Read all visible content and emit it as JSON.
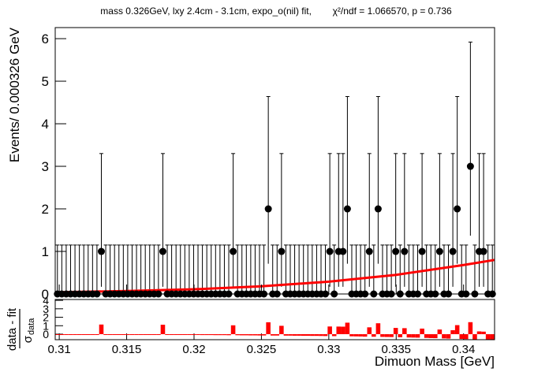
{
  "chart_data": [
    {
      "type": "errorbar",
      "title": "mass 0.326GeV, lxy 2.4cm - 3.1cm, expo_o(nil) fit,        χ²/ndf = 1.066570, p = 0.736",
      "ylabel": "Events/ 0.000326 GeV",
      "xlim": [
        0.3097,
        0.3423
      ],
      "ylim": [
        0,
        6.26
      ],
      "yticks": [
        0,
        1,
        2,
        3,
        4,
        5,
        6
      ],
      "marker_color": "#000000",
      "x": [
        0.309863,
        0.310189,
        0.310515,
        0.310841,
        0.311167,
        0.311493,
        0.311819,
        0.312145,
        0.312471,
        0.312797,
        0.313123,
        0.313449,
        0.313775,
        0.314101,
        0.314427,
        0.314753,
        0.315079,
        0.315405,
        0.315731,
        0.316057,
        0.316383,
        0.316709,
        0.317035,
        0.317361,
        0.317687,
        0.318013,
        0.318339,
        0.318665,
        0.318991,
        0.319317,
        0.319643,
        0.319969,
        0.320295,
        0.320621,
        0.320947,
        0.321273,
        0.321599,
        0.321925,
        0.322251,
        0.322577,
        0.322903,
        0.323229,
        0.323555,
        0.323881,
        0.324207,
        0.324533,
        0.324859,
        0.325185,
        0.325511,
        0.325837,
        0.326163,
        0.326489,
        0.326815,
        0.327141,
        0.327467,
        0.327793,
        0.328119,
        0.328445,
        0.328771,
        0.329097,
        0.329423,
        0.329749,
        0.330075,
        0.330401,
        0.330727,
        0.331053,
        0.331379,
        0.331705,
        0.332031,
        0.332357,
        0.332683,
        0.333009,
        0.333335,
        0.333661,
        0.333987,
        0.334313,
        0.334639,
        0.334965,
        0.335291,
        0.335617,
        0.335943,
        0.336269,
        0.336595,
        0.336921,
        0.337247,
        0.337573,
        0.337899,
        0.338225,
        0.338551,
        0.338877,
        0.339203,
        0.339529,
        0.339855,
        0.340181,
        0.340507,
        0.340833,
        0.341159,
        0.341485,
        0.341811,
        0.342137
      ],
      "values": [
        0,
        0,
        0,
        0,
        0,
        0,
        0,
        0,
        0,
        0,
        1,
        0,
        0,
        0,
        0,
        0,
        0,
        0,
        0,
        0,
        0,
        0,
        0,
        0,
        1,
        0,
        0,
        0,
        0,
        0,
        0,
        0,
        0,
        0,
        0,
        0,
        0,
        0,
        0,
        0,
        1,
        0,
        0,
        0,
        0,
        0,
        0,
        0,
        2,
        0,
        0,
        1,
        0,
        0,
        0,
        0,
        0,
        0,
        0,
        0,
        0,
        0,
        1,
        0,
        1,
        1,
        2,
        0,
        0,
        0,
        0,
        1,
        0,
        2,
        0,
        0,
        0,
        1,
        0,
        1,
        0,
        0,
        0,
        1,
        0,
        0,
        0,
        1,
        0,
        0,
        1,
        2,
        0,
        0,
        3,
        0,
        1,
        1,
        0,
        0
      ],
      "error_low": [
        0,
        0,
        0,
        0,
        0,
        0,
        0,
        0,
        0,
        0,
        0.83,
        0,
        0,
        0,
        0,
        0,
        0,
        0,
        0,
        0,
        0,
        0,
        0,
        0,
        0.83,
        0,
        0,
        0,
        0,
        0,
        0,
        0,
        0,
        0,
        0,
        0,
        0,
        0,
        0,
        0,
        0.83,
        0,
        0,
        0,
        0,
        0,
        0,
        0,
        1.29,
        0,
        0,
        0.83,
        0,
        0,
        0,
        0,
        0,
        0,
        0,
        0,
        0,
        0,
        0.83,
        0,
        0.83,
        0.83,
        1.29,
        0,
        0,
        0,
        0,
        0.83,
        0,
        1.29,
        0,
        0,
        0,
        0.83,
        0,
        0.83,
        0,
        0,
        0,
        0.83,
        0,
        0,
        0,
        0.83,
        0,
        0,
        0.83,
        1.29,
        0,
        0,
        1.63,
        0,
        0.83,
        0.83,
        0,
        0
      ],
      "error_high": [
        1.15,
        1.15,
        1.15,
        1.15,
        1.15,
        1.15,
        1.15,
        1.15,
        1.15,
        1.15,
        2.3,
        1.15,
        1.15,
        1.15,
        1.15,
        1.15,
        1.15,
        1.15,
        1.15,
        1.15,
        1.15,
        1.15,
        1.15,
        1.15,
        2.3,
        1.15,
        1.15,
        1.15,
        1.15,
        1.15,
        1.15,
        1.15,
        1.15,
        1.15,
        1.15,
        1.15,
        1.15,
        1.15,
        1.15,
        1.15,
        2.3,
        1.15,
        1.15,
        1.15,
        1.15,
        1.15,
        1.15,
        1.15,
        2.64,
        1.15,
        1.15,
        2.3,
        1.15,
        1.15,
        1.15,
        1.15,
        1.15,
        1.15,
        1.15,
        1.15,
        1.15,
        1.15,
        2.3,
        1.15,
        2.3,
        2.3,
        2.64,
        1.15,
        1.15,
        1.15,
        1.15,
        2.3,
        1.15,
        2.64,
        1.15,
        1.15,
        1.15,
        2.3,
        1.15,
        2.3,
        1.15,
        1.15,
        1.15,
        2.3,
        1.15,
        1.15,
        1.15,
        2.3,
        1.15,
        1.15,
        2.3,
        2.64,
        1.15,
        1.15,
        2.92,
        1.15,
        2.3,
        2.3,
        1.15,
        1.15
      ],
      "fit": {
        "color": "#ff0000",
        "x": [
          0.3097,
          0.315,
          0.32,
          0.325,
          0.33,
          0.335,
          0.34,
          0.3423
        ],
        "y": [
          0.04,
          0.07,
          0.11,
          0.18,
          0.29,
          0.45,
          0.68,
          0.8
        ]
      }
    },
    {
      "type": "bar",
      "xlabel": "Dimuon Mass [GeV]",
      "ylabel": {
        "numerator": "data - fit",
        "symbol": "σ",
        "subscript": "data"
      },
      "xlim": [
        0.3097,
        0.3423
      ],
      "xticks": [
        0.31,
        0.315,
        0.32,
        0.325,
        0.33,
        0.335,
        0.34
      ],
      "ylim": [
        -0.65,
        4.1
      ],
      "yticks": [
        0,
        1,
        2,
        3,
        4
      ],
      "bin_width": 0.000326,
      "color": "#ff0000",
      "values": [
        -0.03,
        -0.03,
        -0.03,
        -0.04,
        -0.04,
        -0.04,
        -0.04,
        -0.04,
        -0.04,
        -0.05,
        1.14,
        -0.05,
        -0.05,
        -0.05,
        -0.05,
        -0.05,
        -0.06,
        -0.06,
        -0.06,
        -0.06,
        -0.06,
        -0.07,
        -0.07,
        -0.07,
        1.12,
        -0.07,
        -0.08,
        -0.08,
        -0.08,
        -0.08,
        -0.09,
        -0.09,
        -0.09,
        -0.1,
        -0.1,
        -0.1,
        -0.11,
        -0.11,
        -0.11,
        -0.12,
        1.05,
        -0.12,
        -0.13,
        -0.13,
        -0.14,
        -0.14,
        -0.15,
        -0.15,
        1.41,
        -0.16,
        -0.16,
        0.99,
        -0.17,
        -0.17,
        -0.18,
        -0.18,
        -0.19,
        -0.19,
        -0.2,
        -0.2,
        -0.21,
        -0.22,
        0.91,
        -0.23,
        0.9,
        0.89,
        1.36,
        -0.25,
        -0.26,
        -0.27,
        -0.29,
        0.81,
        -0.3,
        1.29,
        -0.32,
        -0.33,
        -0.34,
        0.74,
        -0.36,
        0.71,
        -0.39,
        -0.4,
        -0.41,
        0.66,
        -0.44,
        -0.46,
        -0.47,
        0.55,
        -0.5,
        -0.52,
        0.47,
        1.07,
        -0.56,
        -0.58,
        1.42,
        -0.62,
        0.33,
        0.3,
        -0.68,
        -0.7
      ]
    }
  ]
}
